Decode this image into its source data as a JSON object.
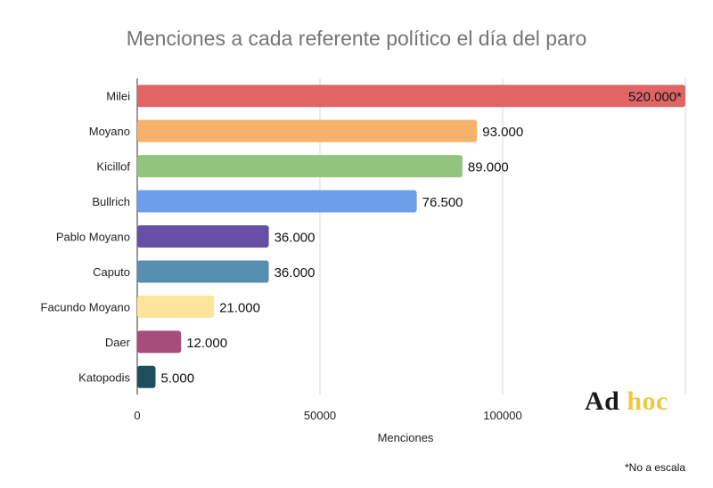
{
  "chart_data": {
    "type": "bar",
    "orientation": "horizontal",
    "title": "Menciones a cada referente político el día del paro",
    "xlabel": "Menciones",
    "ylabel": "",
    "xlim": [
      0,
      150000
    ],
    "x_ticks": [
      0,
      50000,
      100000
    ],
    "x_tick_labels": [
      "0",
      "50000",
      "100000"
    ],
    "grid": true,
    "categories": [
      "Milei",
      "Moyano",
      "Kicillof",
      "Bullrich",
      "Pablo Moyano",
      "Caputo",
      "Facundo Moyano",
      "Daer",
      "Katopodis"
    ],
    "values": [
      520000,
      93000,
      89000,
      76500,
      36000,
      36000,
      21000,
      12000,
      5000
    ],
    "value_labels": [
      "520.000*",
      "93.000",
      "89.000",
      "76.500",
      "36.000",
      "36.000",
      "21.000",
      "12.000",
      "5.000"
    ],
    "colors": [
      "#e06666",
      "#f6b26b",
      "#93c47d",
      "#6d9eeb",
      "#674ea7",
      "#5590b0",
      "#ffe599",
      "#a64d79",
      "#1f4e5f"
    ],
    "truncated_bars": [
      "Milei"
    ]
  },
  "logo": {
    "part1": "Ad",
    "part2": "hoc"
  },
  "footnote": "*No a escala"
}
